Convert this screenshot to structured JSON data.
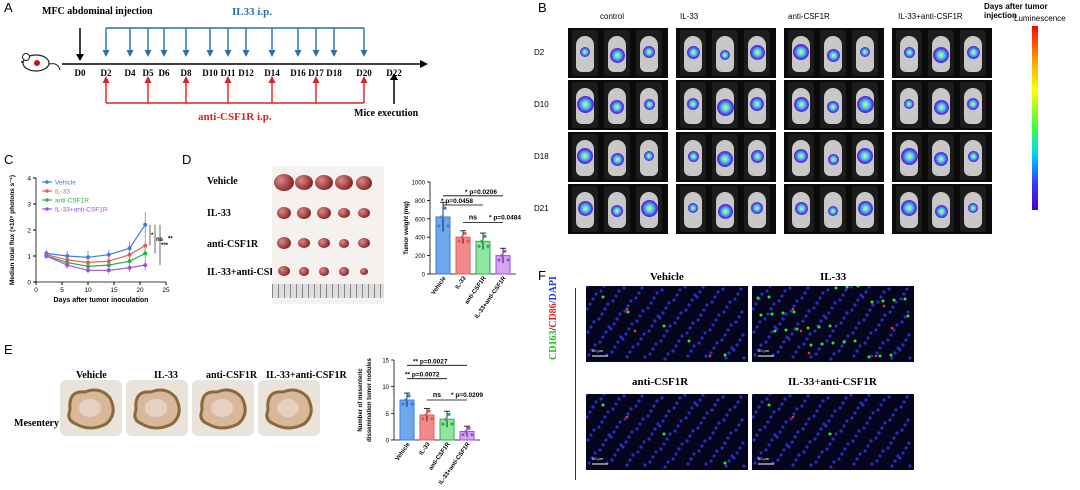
{
  "colors": {
    "il33_blue": "#2a6fb2",
    "csf_red": "#e02020",
    "vehicle": "#3a7de0",
    "il33": "#e85a5a",
    "anti": "#2ab04a",
    "combo": "#a34ee0"
  },
  "panelA": {
    "letter": "A",
    "injection": "MFC abdominal injection",
    "il33_label": "IL33 i.p.",
    "days": [
      "D0",
      "D2",
      "D4",
      "D5",
      "D6",
      "D8",
      "D10",
      "D11",
      "D12",
      "D14",
      "D16",
      "D17",
      "D18",
      "D20",
      "D22"
    ],
    "csf_label": "anti-CSF1R i.p.",
    "execution": "Mice execution"
  },
  "panelB": {
    "letter": "B",
    "columns": [
      "control",
      "IL-33",
      "anti-CSF1R",
      "IL-33+anti-CSF1R"
    ],
    "rows": [
      "D2",
      "D10",
      "D18",
      "D21"
    ],
    "days_title": "Days after tumor injection",
    "lum_title": "Luminescence"
  },
  "panelC": {
    "letter": "C",
    "legend": [
      "Vehicle",
      "IL-33",
      "anti-CSF1R",
      "IL-33+anti-CSF1R"
    ],
    "ylabel": "Median total flux (×10⁸ photons s⁻¹)",
    "xlabel": "Days after tumor inoculation",
    "sig": [
      "*",
      "ns",
      "***",
      "**"
    ]
  },
  "panelD": {
    "letter": "D",
    "groups": [
      "Vehicle",
      "IL-33",
      "anti-CSF1R",
      "IL-33+anti-CSF1R"
    ],
    "pvals": [
      "* p=0.0206",
      "* p=0.0458",
      "ns",
      "* p=0.0484"
    ]
  },
  "panelE": {
    "letter": "E",
    "groups": [
      "Vehicle",
      "IL-33",
      "anti-CSF1R",
      "IL-33+anti-CSF1R"
    ],
    "row_label": "Mesentery",
    "pvals": [
      "** p=0.0027",
      "** p=0.0072",
      "ns",
      "* p=0.0209"
    ]
  },
  "panelF": {
    "letter": "F",
    "titles": [
      "Vehicle",
      "IL-33",
      "anti-CSF1R",
      "IL-33+anti-CSF1R"
    ],
    "stain": {
      "a": "CD163",
      "b": "/",
      "c": "CD86",
      "d": "/DAPI"
    },
    "scale": "50 μm"
  },
  "chart_data": [
    {
      "type": "line",
      "title": "",
      "xlabel": "Days after tumor inoculation",
      "ylabel": "Median total flux (×10⁸ photons s⁻¹)",
      "x": [
        2,
        6,
        10,
        14,
        18,
        21
      ],
      "xlim": [
        0,
        25
      ],
      "ylim": [
        0,
        4
      ],
      "xticks": [
        0,
        5,
        10,
        15,
        20,
        25
      ],
      "yticks": [
        0,
        1,
        2,
        3,
        4
      ],
      "series": [
        {
          "name": "Vehicle",
          "values": [
            1.1,
            1.0,
            0.95,
            1.05,
            1.3,
            2.2
          ],
          "err": [
            0.15,
            0.2,
            0.25,
            0.2,
            0.25,
            0.5
          ]
        },
        {
          "name": "IL-33",
          "values": [
            1.05,
            0.85,
            0.75,
            0.8,
            1.05,
            1.4
          ],
          "err": [
            0.12,
            0.15,
            0.2,
            0.2,
            0.2,
            0.35
          ]
        },
        {
          "name": "anti-CSF1R",
          "values": [
            1.0,
            0.75,
            0.6,
            0.65,
            0.8,
            1.1
          ],
          "err": [
            0.1,
            0.15,
            0.15,
            0.15,
            0.2,
            0.3
          ]
        },
        {
          "name": "IL-33+anti-CSF1R",
          "values": [
            1.0,
            0.65,
            0.45,
            0.45,
            0.55,
            0.65
          ],
          "err": [
            0.1,
            0.15,
            0.12,
            0.15,
            0.15,
            0.2
          ]
        }
      ]
    },
    {
      "type": "bar",
      "title": "",
      "ylabel": "Tumor weight (mg)",
      "categories": [
        "Vehicle",
        "IL-33",
        "anti-CSF1R",
        "IL-33+anti-CSF1R"
      ],
      "values": [
        620,
        400,
        355,
        200
      ],
      "err": [
        160,
        70,
        90,
        80
      ],
      "ylim": [
        0,
        1000
      ],
      "yticks": [
        0,
        200,
        400,
        600,
        800,
        1000
      ]
    },
    {
      "type": "bar",
      "title": "",
      "ylabel": "Number of mesenteric dissemination tumor nodules",
      "categories": [
        "Vehicle",
        "IL-33",
        "anti-CSF1R",
        "IL-33+anti-CSF1R"
      ],
      "values": [
        7.5,
        4.7,
        3.9,
        1.6
      ],
      "err": [
        1.3,
        1.2,
        1.5,
        1.0
      ],
      "ylim": [
        0,
        15
      ],
      "yticks": [
        0,
        5,
        10,
        15
      ]
    }
  ]
}
